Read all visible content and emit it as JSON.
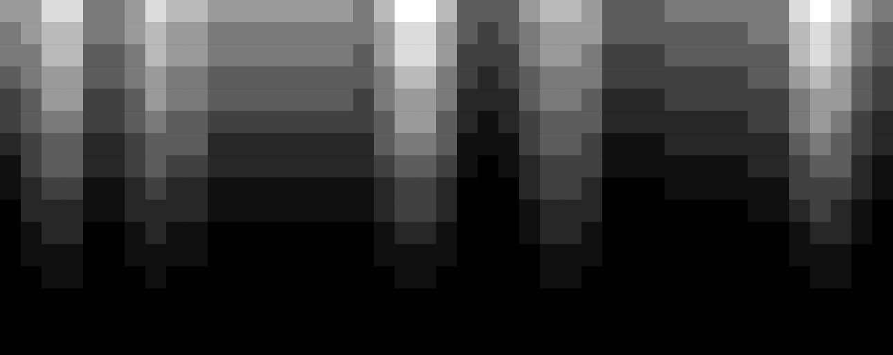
{
  "chart_data": {
    "type": "heatmap",
    "tick_labels": false,
    "color_range": [
      0,
      9
    ],
    "cells": [
      [
        6,
        6,
        8,
        8,
        5,
        5,
        6,
        8,
        7,
        7,
        6,
        6,
        6,
        6,
        6,
        6,
        6,
        5,
        7,
        9,
        9,
        7,
        4,
        4,
        4,
        6,
        7,
        7,
        6,
        4,
        4,
        4,
        5,
        5,
        5,
        5,
        5,
        5,
        8,
        9,
        8,
        6,
        5
      ],
      [
        5,
        6,
        7,
        7,
        5,
        5,
        6,
        7,
        6,
        6,
        5,
        5,
        5,
        5,
        5,
        5,
        5,
        5,
        6,
        8,
        8,
        6,
        4,
        3,
        4,
        5,
        6,
        6,
        6,
        4,
        4,
        4,
        4,
        4,
        4,
        4,
        5,
        5,
        7,
        8,
        7,
        5,
        4
      ],
      [
        5,
        5,
        7,
        7,
        4,
        4,
        5,
        7,
        6,
        6,
        5,
        5,
        5,
        5,
        5,
        5,
        5,
        4,
        6,
        8,
        8,
        6,
        3,
        3,
        3,
        5,
        6,
        6,
        5,
        3,
        3,
        3,
        4,
        4,
        4,
        4,
        4,
        4,
        7,
        8,
        7,
        5,
        4
      ],
      [
        4,
        5,
        6,
        6,
        4,
        4,
        5,
        6,
        5,
        5,
        4,
        4,
        4,
        4,
        4,
        4,
        4,
        4,
        5,
        7,
        7,
        5,
        3,
        2,
        3,
        4,
        5,
        5,
        5,
        3,
        3,
        3,
        3,
        3,
        3,
        3,
        4,
        4,
        6,
        7,
        6,
        4,
        3
      ],
      [
        3,
        4,
        6,
        6,
        3,
        3,
        4,
        6,
        5,
        5,
        4,
        4,
        4,
        4,
        4,
        4,
        4,
        3,
        5,
        6,
        6,
        5,
        2,
        2,
        2,
        4,
        5,
        5,
        4,
        2,
        2,
        2,
        3,
        3,
        3,
        3,
        3,
        3,
        5,
        6,
        6,
        4,
        3
      ],
      [
        3,
        4,
        5,
        5,
        3,
        3,
        4,
        5,
        4,
        4,
        3,
        3,
        3,
        3,
        3,
        3,
        3,
        3,
        4,
        6,
        6,
        4,
        2,
        1,
        2,
        3,
        4,
        4,
        4,
        2,
        2,
        2,
        2,
        2,
        2,
        2,
        3,
        3,
        5,
        6,
        5,
        3,
        2
      ],
      [
        2,
        3,
        4,
        4,
        2,
        2,
        3,
        4,
        4,
        4,
        2,
        2,
        2,
        2,
        2,
        2,
        2,
        2,
        4,
        5,
        5,
        4,
        1,
        1,
        1,
        3,
        4,
        4,
        3,
        1,
        1,
        1,
        2,
        2,
        2,
        2,
        2,
        2,
        4,
        5,
        4,
        3,
        2
      ],
      [
        1,
        3,
        4,
        4,
        2,
        2,
        3,
        4,
        3,
        3,
        2,
        2,
        2,
        2,
        2,
        2,
        2,
        2,
        3,
        4,
        4,
        3,
        1,
        0,
        1,
        2,
        3,
        3,
        3,
        1,
        1,
        1,
        1,
        1,
        1,
        1,
        2,
        2,
        3,
        4,
        4,
        2,
        1
      ],
      [
        1,
        2,
        3,
        3,
        1,
        1,
        2,
        3,
        2,
        2,
        1,
        1,
        1,
        1,
        1,
        1,
        1,
        1,
        2,
        3,
        3,
        2,
        0,
        0,
        0,
        2,
        3,
        3,
        2,
        0,
        0,
        0,
        1,
        1,
        1,
        1,
        1,
        1,
        3,
        3,
        3,
        2,
        1
      ],
      [
        0,
        2,
        2,
        2,
        1,
        1,
        2,
        2,
        2,
        2,
        1,
        1,
        1,
        1,
        1,
        1,
        1,
        1,
        2,
        3,
        3,
        2,
        0,
        0,
        0,
        1,
        2,
        2,
        2,
        0,
        0,
        0,
        0,
        0,
        0,
        0,
        1,
        1,
        2,
        3,
        2,
        1,
        0
      ],
      [
        0,
        1,
        2,
        2,
        0,
        0,
        1,
        2,
        1,
        1,
        0,
        0,
        0,
        0,
        0,
        0,
        0,
        0,
        1,
        2,
        2,
        1,
        0,
        0,
        0,
        1,
        2,
        2,
        1,
        0,
        0,
        0,
        0,
        0,
        0,
        0,
        0,
        0,
        1,
        2,
        2,
        1,
        0
      ],
      [
        0,
        1,
        1,
        1,
        0,
        0,
        1,
        1,
        1,
        1,
        0,
        0,
        0,
        0,
        0,
        0,
        0,
        0,
        1,
        1,
        1,
        1,
        0,
        0,
        0,
        0,
        1,
        1,
        1,
        0,
        0,
        0,
        0,
        0,
        0,
        0,
        0,
        0,
        1,
        1,
        1,
        0,
        0
      ],
      [
        0,
        0,
        1,
        1,
        0,
        0,
        0,
        1,
        0,
        0,
        0,
        0,
        0,
        0,
        0,
        0,
        0,
        0,
        0,
        1,
        1,
        0,
        0,
        0,
        0,
        0,
        1,
        1,
        0,
        0,
        0,
        0,
        0,
        0,
        0,
        0,
        0,
        0,
        0,
        1,
        1,
        0,
        0
      ],
      [
        0,
        0,
        0,
        0,
        0,
        0,
        0,
        0,
        0,
        0,
        0,
        0,
        0,
        0,
        0,
        0,
        0,
        0,
        0,
        0,
        0,
        0,
        0,
        0,
        0,
        0,
        0,
        0,
        0,
        0,
        0,
        0,
        0,
        0,
        0,
        0,
        0,
        0,
        0,
        0,
        0,
        0,
        0
      ],
      [
        0,
        0,
        0,
        0,
        0,
        0,
        0,
        0,
        0,
        0,
        0,
        0,
        0,
        0,
        0,
        0,
        0,
        0,
        0,
        0,
        0,
        0,
        0,
        0,
        0,
        0,
        0,
        0,
        0,
        0,
        0,
        0,
        0,
        0,
        0,
        0,
        0,
        0,
        0,
        0,
        0,
        0,
        0
      ],
      [
        0,
        0,
        0,
        0,
        0,
        0,
        0,
        0,
        0,
        0,
        0,
        0,
        0,
        0,
        0,
        0,
        0,
        0,
        0,
        0,
        0,
        0,
        0,
        0,
        0,
        0,
        0,
        0,
        0,
        0,
        0,
        0,
        0,
        0,
        0,
        0,
        0,
        0,
        0,
        0,
        0,
        0,
        0
      ]
    ]
  }
}
